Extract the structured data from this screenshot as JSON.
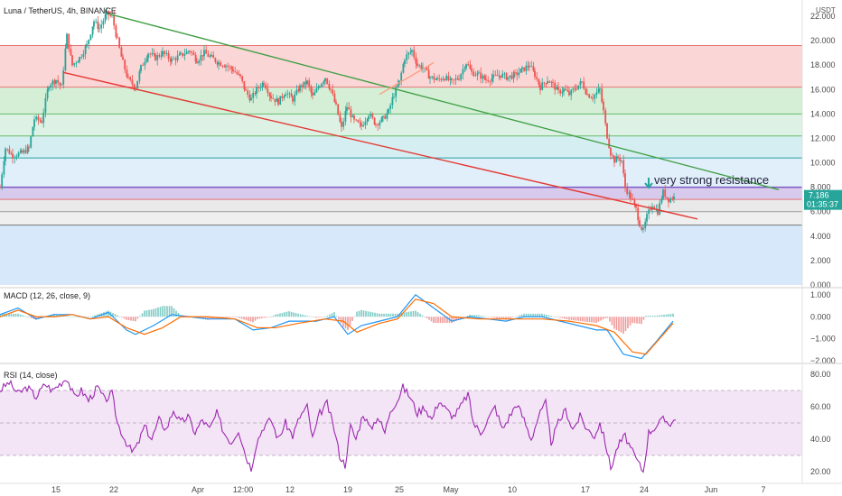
{
  "header": {
    "symbol_title": "Luna / TetherUS, 4h, BINANCE",
    "currency": "USDT"
  },
  "chart_data": [
    {
      "type": "candlestick",
      "title": "Luna / TetherUS, 4h, BINANCE",
      "y_unit": "USDT",
      "ylim": [
        0,
        22
      ],
      "y_ticks": [
        "22.000",
        "20.000",
        "18.000",
        "16.000",
        "14.000",
        "12.000",
        "10.000",
        "8.000",
        "6.000",
        "4.000",
        "2.000",
        "0.000"
      ],
      "x_tick_labels": [
        "15",
        "22",
        "Apr",
        "12:00",
        "12",
        "19",
        "25",
        "May",
        "10",
        "17",
        "24",
        "Jun",
        "7"
      ],
      "last_price": "7.186",
      "countdown": "01:35:37",
      "colors": {
        "up": "#26a69a",
        "down": "#ef5350"
      },
      "price_path": [
        [
          0,
          8.0
        ],
        [
          6,
          11.2
        ],
        [
          14,
          10.6
        ],
        [
          24,
          10.8
        ],
        [
          32,
          11.2
        ],
        [
          38,
          13.6
        ],
        [
          46,
          13.4
        ],
        [
          54,
          16.4
        ],
        [
          62,
          16.8
        ],
        [
          68,
          16.2
        ],
        [
          74,
          20.4
        ],
        [
          80,
          18.0
        ],
        [
          88,
          18.6
        ],
        [
          96,
          19.6
        ],
        [
          104,
          21.6
        ],
        [
          110,
          21.0
        ],
        [
          118,
          22.2
        ],
        [
          124,
          22.0
        ],
        [
          130,
          20.0
        ],
        [
          136,
          18.2
        ],
        [
          142,
          16.8
        ],
        [
          150,
          16.2
        ],
        [
          156,
          17.8
        ],
        [
          164,
          19.0
        ],
        [
          172,
          18.6
        ],
        [
          180,
          19.0
        ],
        [
          190,
          18.4
        ],
        [
          200,
          18.8
        ],
        [
          210,
          19.2
        ],
        [
          218,
          18.4
        ],
        [
          226,
          19.0
        ],
        [
          234,
          18.6
        ],
        [
          242,
          18.2
        ],
        [
          250,
          18.0
        ],
        [
          258,
          17.6
        ],
        [
          266,
          17.0
        ],
        [
          272,
          15.8
        ],
        [
          278,
          15.2
        ],
        [
          284,
          16.0
        ],
        [
          292,
          16.6
        ],
        [
          300,
          15.4
        ],
        [
          308,
          15.0
        ],
        [
          316,
          15.8
        ],
        [
          324,
          15.2
        ],
        [
          332,
          16.2
        ],
        [
          340,
          16.6
        ],
        [
          346,
          15.4
        ],
        [
          354,
          16.4
        ],
        [
          360,
          17.0
        ],
        [
          366,
          16.0
        ],
        [
          372,
          14.6
        ],
        [
          378,
          12.8
        ],
        [
          384,
          14.6
        ],
        [
          392,
          13.4
        ],
        [
          400,
          13.0
        ],
        [
          408,
          14.0
        ],
        [
          416,
          13.2
        ],
        [
          424,
          13.6
        ],
        [
          430,
          14.2
        ],
        [
          436,
          15.6
        ],
        [
          442,
          16.6
        ],
        [
          448,
          18.6
        ],
        [
          456,
          19.2
        ],
        [
          462,
          18.0
        ],
        [
          468,
          17.8
        ],
        [
          476,
          17.0
        ],
        [
          484,
          16.8
        ],
        [
          492,
          17.0
        ],
        [
          500,
          16.6
        ],
        [
          508,
          17.0
        ],
        [
          516,
          18.2
        ],
        [
          522,
          17.4
        ],
        [
          530,
          17.2
        ],
        [
          538,
          16.8
        ],
        [
          546,
          17.0
        ],
        [
          554,
          17.2
        ],
        [
          562,
          17.0
        ],
        [
          570,
          17.2
        ],
        [
          578,
          17.6
        ],
        [
          586,
          18.0
        ],
        [
          592,
          17.2
        ],
        [
          598,
          16.2
        ],
        [
          606,
          16.8
        ],
        [
          612,
          16.4
        ],
        [
          618,
          15.8
        ],
        [
          624,
          16.0
        ],
        [
          630,
          15.6
        ],
        [
          638,
          16.2
        ],
        [
          644,
          16.6
        ],
        [
          650,
          15.6
        ],
        [
          656,
          15.4
        ],
        [
          664,
          16.0
        ],
        [
          668,
          14.2
        ],
        [
          672,
          12.2
        ],
        [
          676,
          10.8
        ],
        [
          680,
          10.2
        ],
        [
          684,
          10.4
        ],
        [
          688,
          10.2
        ],
        [
          692,
          8.0
        ],
        [
          698,
          7.2
        ],
        [
          704,
          6.2
        ],
        [
          708,
          5.0
        ],
        [
          712,
          4.4
        ],
        [
          716,
          5.6
        ],
        [
          722,
          6.6
        ],
        [
          728,
          6.0
        ],
        [
          734,
          7.6
        ],
        [
          740,
          7.0
        ],
        [
          746,
          7.186
        ]
      ],
      "support_resistance_levels": [
        19.6,
        16.2,
        14.0,
        12.2,
        10.4,
        8.0,
        7.0,
        6.0,
        4.9
      ],
      "trendlines": [
        {
          "from": [
            120,
            22.2
          ],
          "to": [
            862,
            7.8
          ],
          "color": "#43a047"
        },
        {
          "from": [
            70,
            17.4
          ],
          "to": [
            772,
            5.4
          ],
          "color": "#e53935"
        },
        {
          "from": [
            420,
            15.6
          ],
          "to": [
            480,
            18.2
          ],
          "color": "#ff9e80"
        }
      ],
      "annotation": "very strong resistance"
    },
    {
      "type": "line",
      "title": "MACD (12, 26, close, 9)",
      "ylim": [
        -2.0,
        1.2
      ],
      "y_ticks": [
        "1.000",
        "0.000",
        "−1.000",
        "−2.000"
      ],
      "series": [
        {
          "name": "MACD",
          "color": "#2196f3",
          "values": [
            [
              0,
              0.1
            ],
            [
              20,
              0.4
            ],
            [
              40,
              -0.1
            ],
            [
              60,
              0.1
            ],
            [
              80,
              0.1
            ],
            [
              100,
              -0.1
            ],
            [
              120,
              0.2
            ],
            [
              140,
              -0.6
            ],
            [
              150,
              -0.8
            ],
            [
              170,
              -0.4
            ],
            [
              190,
              0.1
            ],
            [
              210,
              0.0
            ],
            [
              230,
              -0.1
            ],
            [
              260,
              -0.1
            ],
            [
              280,
              -0.6
            ],
            [
              300,
              -0.5
            ],
            [
              320,
              -0.2
            ],
            [
              350,
              -0.2
            ],
            [
              370,
              0.0
            ],
            [
              385,
              -0.8
            ],
            [
              400,
              -0.4
            ],
            [
              420,
              -0.2
            ],
            [
              440,
              0.0
            ],
            [
              460,
              1.0
            ],
            [
              480,
              0.4
            ],
            [
              500,
              -0.2
            ],
            [
              520,
              0.0
            ],
            [
              540,
              -0.1
            ],
            [
              560,
              -0.2
            ],
            [
              580,
              0.0
            ],
            [
              600,
              0.0
            ],
            [
              620,
              -0.2
            ],
            [
              640,
              -0.4
            ],
            [
              660,
              -0.6
            ],
            [
              672,
              -0.6
            ],
            [
              690,
              -1.7
            ],
            [
              710,
              -1.9
            ],
            [
              725,
              -1.2
            ],
            [
              745,
              -0.2
            ]
          ]
        },
        {
          "name": "Signal",
          "color": "#ff6d00",
          "values": [
            [
              0,
              0.0
            ],
            [
              20,
              0.3
            ],
            [
              40,
              0.0
            ],
            [
              60,
              0.0
            ],
            [
              80,
              0.1
            ],
            [
              100,
              -0.1
            ],
            [
              120,
              0.0
            ],
            [
              140,
              -0.5
            ],
            [
              160,
              -0.8
            ],
            [
              180,
              -0.5
            ],
            [
              200,
              0.0
            ],
            [
              230,
              0.0
            ],
            [
              260,
              -0.1
            ],
            [
              285,
              -0.5
            ],
            [
              305,
              -0.5
            ],
            [
              330,
              -0.3
            ],
            [
              360,
              -0.1
            ],
            [
              380,
              -0.2
            ],
            [
              395,
              -0.7
            ],
            [
              420,
              -0.3
            ],
            [
              440,
              -0.1
            ],
            [
              460,
              0.8
            ],
            [
              480,
              0.6
            ],
            [
              500,
              0.0
            ],
            [
              530,
              -0.1
            ],
            [
              560,
              -0.1
            ],
            [
              600,
              -0.1
            ],
            [
              630,
              -0.2
            ],
            [
              660,
              -0.4
            ],
            [
              680,
              -0.7
            ],
            [
              700,
              -1.6
            ],
            [
              715,
              -1.7
            ],
            [
              730,
              -1.0
            ],
            [
              745,
              -0.3
            ]
          ]
        }
      ]
    },
    {
      "type": "line",
      "title": "RSI (14, close)",
      "ylim": [
        15,
        85
      ],
      "y_ticks": [
        "80.00",
        "60.00",
        "40.00",
        "20.00"
      ],
      "band": [
        30,
        70
      ],
      "series": [
        {
          "name": "RSI",
          "color": "#9c27b0",
          "values": [
            [
              0,
              70
            ],
            [
              10,
              75
            ],
            [
              20,
              68
            ],
            [
              30,
              72
            ],
            [
              40,
              66
            ],
            [
              50,
              74
            ],
            [
              58,
              70
            ],
            [
              66,
              74
            ],
            [
              74,
              78
            ],
            [
              82,
              66
            ],
            [
              90,
              70
            ],
            [
              98,
              64
            ],
            [
              108,
              72
            ],
            [
              116,
              64
            ],
            [
              124,
              68
            ],
            [
              130,
              50
            ],
            [
              138,
              40
            ],
            [
              146,
              32
            ],
            [
              152,
              36
            ],
            [
              160,
              48
            ],
            [
              168,
              40
            ],
            [
              176,
              52
            ],
            [
              184,
              46
            ],
            [
              192,
              58
            ],
            [
              200,
              50
            ],
            [
              208,
              54
            ],
            [
              216,
              44
            ],
            [
              224,
              52
            ],
            [
              232,
              46
            ],
            [
              240,
              56
            ],
            [
              248,
              44
            ],
            [
              256,
              38
            ],
            [
              264,
              46
            ],
            [
              272,
              30
            ],
            [
              278,
              22
            ],
            [
              284,
              38
            ],
            [
              292,
              48
            ],
            [
              300,
              52
            ],
            [
              308,
              40
            ],
            [
              316,
              50
            ],
            [
              324,
              42
            ],
            [
              332,
              54
            ],
            [
              340,
              60
            ],
            [
              346,
              40
            ],
            [
              354,
              56
            ],
            [
              362,
              62
            ],
            [
              370,
              46
            ],
            [
              376,
              30
            ],
            [
              382,
              24
            ],
            [
              388,
              48
            ],
            [
              394,
              40
            ],
            [
              402,
              56
            ],
            [
              410,
              46
            ],
            [
              418,
              54
            ],
            [
              426,
              44
            ],
            [
              432,
              58
            ],
            [
              440,
              64
            ],
            [
              446,
              72
            ],
            [
              454,
              66
            ],
            [
              462,
              56
            ],
            [
              470,
              60
            ],
            [
              478,
              52
            ],
            [
              486,
              64
            ],
            [
              494,
              58
            ],
            [
              502,
              54
            ],
            [
              510,
              60
            ],
            [
              518,
              68
            ],
            [
              524,
              50
            ],
            [
              532,
              44
            ],
            [
              540,
              52
            ],
            [
              548,
              60
            ],
            [
              556,
              46
            ],
            [
              564,
              54
            ],
            [
              572,
              62
            ],
            [
              580,
              52
            ],
            [
              588,
              40
            ],
            [
              596,
              54
            ],
            [
              604,
              62
            ],
            [
              610,
              38
            ],
            [
              618,
              50
            ],
            [
              626,
              58
            ],
            [
              634,
              46
            ],
            [
              642,
              54
            ],
            [
              650,
              46
            ],
            [
              658,
              42
            ],
            [
              664,
              50
            ],
            [
              670,
              38
            ],
            [
              676,
              22
            ],
            [
              684,
              36
            ],
            [
              692,
              42
            ],
            [
              700,
              32
            ],
            [
              708,
              24
            ],
            [
              712,
              20
            ],
            [
              718,
              44
            ],
            [
              726,
              48
            ],
            [
              734,
              52
            ],
            [
              742,
              50
            ],
            [
              748,
              52
            ]
          ]
        }
      ]
    }
  ],
  "macd_legend": "MACD (12, 26, close, 9)",
  "rsi_legend": "RSI (14, close)",
  "annotation_text": "very strong resistance"
}
